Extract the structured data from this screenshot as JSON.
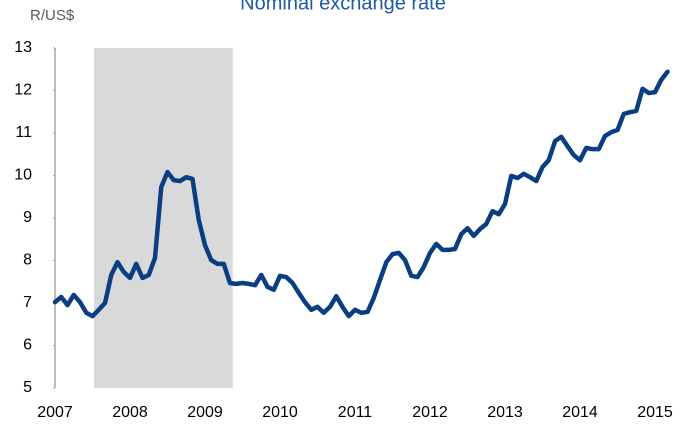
{
  "chart_data": {
    "type": "line",
    "title": "Nominal exchange rate",
    "y_label": "R/US$",
    "x": [
      2007,
      2007.083,
      2007.167,
      2007.25,
      2007.333,
      2007.417,
      2007.5,
      2007.583,
      2007.667,
      2007.75,
      2007.833,
      2007.917,
      2008,
      2008.083,
      2008.167,
      2008.25,
      2008.333,
      2008.417,
      2008.5,
      2008.583,
      2008.667,
      2008.75,
      2008.833,
      2008.917,
      2009,
      2009.083,
      2009.167,
      2009.25,
      2009.333,
      2009.417,
      2009.5,
      2009.583,
      2009.667,
      2009.75,
      2009.833,
      2009.917,
      2010,
      2010.083,
      2010.167,
      2010.25,
      2010.333,
      2010.417,
      2010.5,
      2010.583,
      2010.667,
      2010.75,
      2010.833,
      2010.917,
      2011,
      2011.083,
      2011.167,
      2011.25,
      2011.333,
      2011.417,
      2011.5,
      2011.583,
      2011.667,
      2011.75,
      2011.833,
      2011.917,
      2012,
      2012.083,
      2012.167,
      2012.25,
      2012.333,
      2012.417,
      2012.5,
      2012.583,
      2012.667,
      2012.75,
      2012.833,
      2012.917,
      2013,
      2013.083,
      2013.167,
      2013.25,
      2013.333,
      2013.417,
      2013.5,
      2013.583,
      2013.667,
      2013.75,
      2013.833,
      2013.917,
      2014,
      2014.083,
      2014.167,
      2014.25,
      2014.333,
      2014.417,
      2014.5,
      2014.583,
      2014.667,
      2014.75,
      2014.833,
      2014.917,
      2015,
      2015.083,
      2015.167
    ],
    "series": [
      {
        "name": "R/US$",
        "color": "#0b3d82",
        "values": [
          7.02,
          7.14,
          6.95,
          7.19,
          7.02,
          6.77,
          6.69,
          6.84,
          7.0,
          7.66,
          7.96,
          7.73,
          7.59,
          7.92,
          7.59,
          7.66,
          8.06,
          9.73,
          10.08,
          9.89,
          9.87,
          9.96,
          9.92,
          8.95,
          8.36,
          8.01,
          7.92,
          7.92,
          7.47,
          7.45,
          7.47,
          7.45,
          7.42,
          7.66,
          7.38,
          7.31,
          7.64,
          7.61,
          7.47,
          7.24,
          7.02,
          6.84,
          6.91,
          6.77,
          6.91,
          7.16,
          6.91,
          6.69,
          6.84,
          6.77,
          6.79,
          7.12,
          7.54,
          7.96,
          8.15,
          8.18,
          8.01,
          7.64,
          7.61,
          7.85,
          8.18,
          8.39,
          8.25,
          8.25,
          8.27,
          8.62,
          8.76,
          8.58,
          8.74,
          8.86,
          9.16,
          9.09,
          9.33,
          9.99,
          9.94,
          10.04,
          9.96,
          9.87,
          10.2,
          10.36,
          10.81,
          10.91,
          10.69,
          10.48,
          10.36,
          10.65,
          10.62,
          10.62,
          10.93,
          11.02,
          11.07,
          11.45,
          11.49,
          11.52,
          12.04,
          11.94,
          11.96,
          12.25,
          12.44
        ]
      }
    ],
    "shaded_region": [
      2007.52,
      2009.37
    ],
    "shade_color": "#d9d9d9",
    "xlim": [
      2007,
      2015.333
    ],
    "xticks": [
      2007,
      2008,
      2009,
      2010,
      2011,
      2012,
      2013,
      2014,
      2015
    ],
    "ylim": [
      5,
      13
    ],
    "yticks": [
      5,
      6,
      7,
      8,
      9,
      10,
      11,
      12,
      13
    ],
    "grid": false
  }
}
